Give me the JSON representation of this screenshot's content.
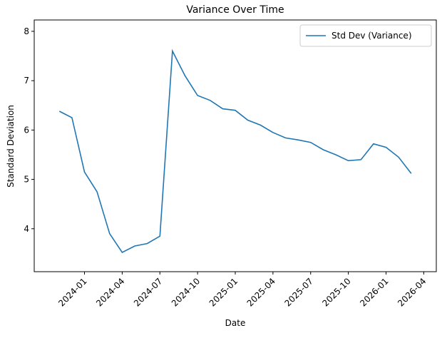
{
  "chart_data": {
    "type": "line",
    "title": "Variance Over Time",
    "x_label": "Date",
    "y_label": "Standard Deviation",
    "x": [
      "2023-11",
      "2023-12",
      "2024-01",
      "2024-02",
      "2024-03",
      "2024-04",
      "2024-05",
      "2024-06",
      "2024-07",
      "2024-08",
      "2024-09",
      "2024-10",
      "2024-11",
      "2024-12",
      "2025-01",
      "2025-02",
      "2025-03",
      "2025-04",
      "2025-05",
      "2025-06",
      "2025-07",
      "2025-08",
      "2025-09",
      "2025-10",
      "2025-11",
      "2025-12",
      "2026-01",
      "2026-02",
      "2026-03"
    ],
    "series": [
      {
        "name": "Std Dev (Variance)",
        "color": "#1f77b4",
        "values": [
          6.38,
          6.25,
          5.15,
          4.75,
          3.9,
          3.52,
          3.65,
          3.7,
          3.85,
          7.6,
          7.1,
          6.7,
          6.6,
          6.43,
          6.4,
          6.2,
          6.1,
          5.95,
          5.84,
          5.8,
          5.75,
          5.6,
          5.5,
          5.38,
          5.4,
          5.72,
          5.65,
          5.45,
          5.12
        ]
      }
    ],
    "xlim": [
      "2023-09",
      "2026-05"
    ],
    "xticks": [
      "2024-01",
      "2024-04",
      "2024-07",
      "2024-10",
      "2025-01",
      "2025-04",
      "2025-07",
      "2025-10",
      "2026-01",
      "2026-04"
    ],
    "ylim": [
      3.13,
      8.23
    ],
    "yticks": [
      4,
      5,
      6,
      7,
      8
    ],
    "grid": false,
    "legend": "upper right"
  }
}
